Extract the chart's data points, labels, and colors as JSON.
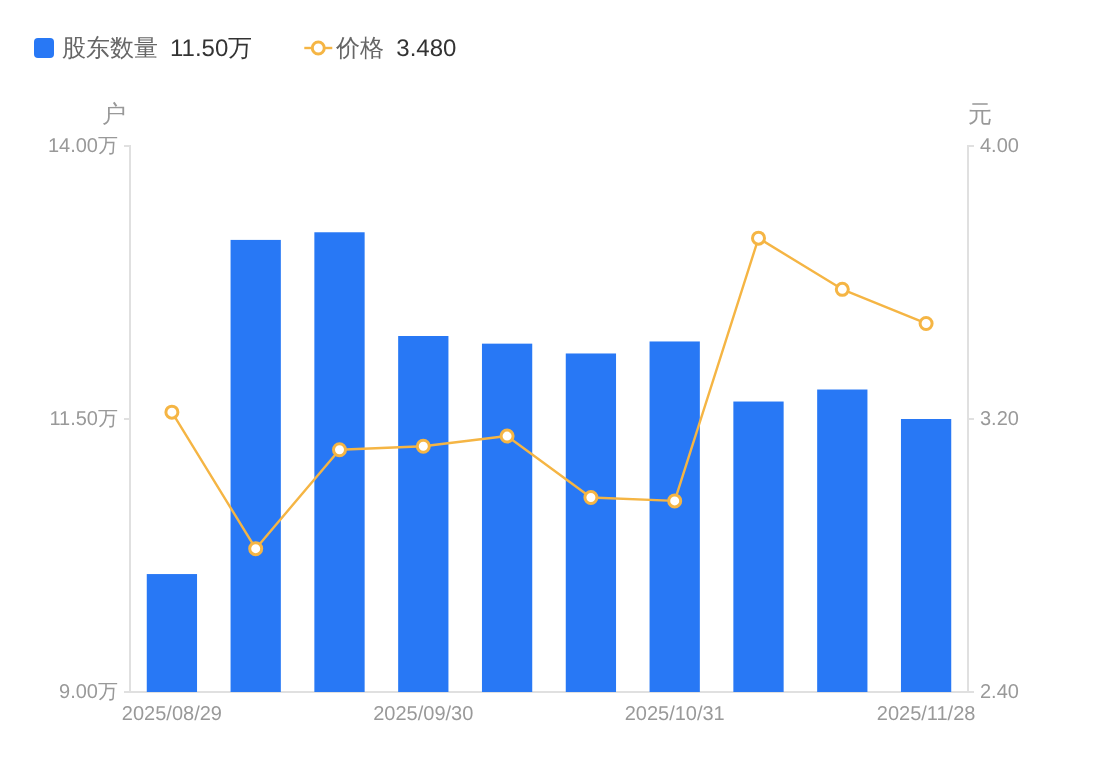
{
  "chart_data": {
    "type": "bar",
    "categories": [
      "2025/08/29",
      null,
      null,
      "2025/09/30",
      null,
      null,
      "2025/10/31",
      null,
      null,
      "2025/11/28"
    ],
    "series": [
      {
        "name": "股东数量",
        "color": "#2878f5",
        "values": [
          10.08,
          13.14,
          13.21,
          12.26,
          12.19,
          12.1,
          12.21,
          11.66,
          11.77,
          11.5
        ]
      },
      {
        "name": "价格",
        "type": "line",
        "axis": "y2",
        "color": "#f5b544",
        "marker": "circle",
        "values": [
          3.22,
          2.82,
          3.11,
          3.12,
          3.15,
          2.97,
          2.96,
          3.73,
          3.58,
          3.48
        ]
      }
    ],
    "ylabel": "户",
    "y2label": "元",
    "ylim": [
      9,
      14
    ],
    "yticks": [
      {
        "value": 9,
        "label": "9.00万"
      },
      {
        "value": 11.5,
        "label": "11.50万"
      },
      {
        "value": 14,
        "label": "14.00万"
      }
    ],
    "y2lim": [
      2.4,
      4
    ],
    "y2ticks": [
      {
        "value": 2.4,
        "label": "2.40"
      },
      {
        "value": 3.2,
        "label": "3.20"
      },
      {
        "value": 4,
        "label": "4.00"
      }
    ],
    "legend": "top left",
    "annotations": [
      "11.50万",
      "3.480"
    ]
  }
}
